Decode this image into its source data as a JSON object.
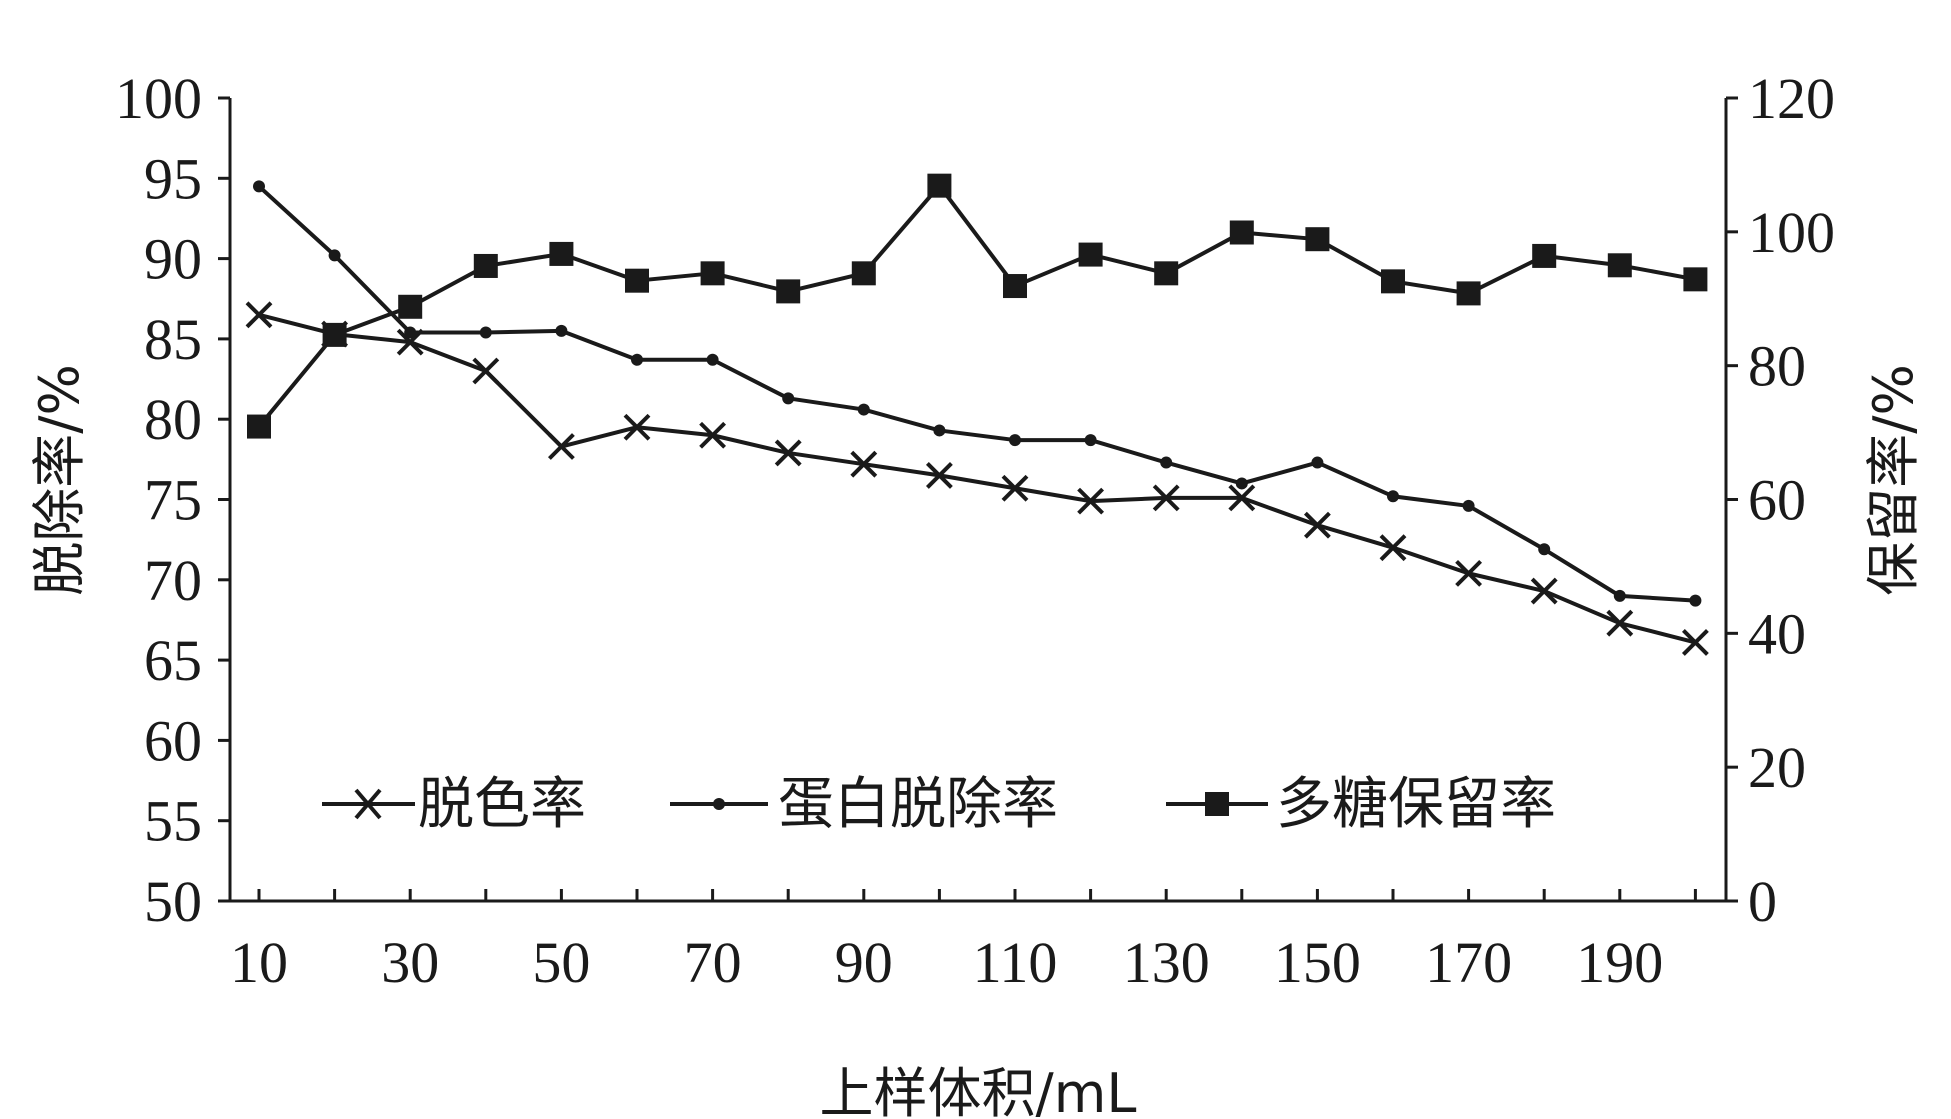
{
  "chart_data": {
    "type": "line",
    "x_tick_labels": [
      "10",
      "30",
      "50",
      "70",
      "90",
      "110",
      "130",
      "150",
      "170",
      "190"
    ],
    "x": [
      10,
      20,
      30,
      40,
      50,
      60,
      70,
      80,
      90,
      100,
      110,
      120,
      130,
      140,
      150,
      160,
      170,
      180,
      190,
      200
    ],
    "xlabel": "上样体积/mL",
    "ylabel_left": "脱除率/%",
    "ylabel_right": "保留率/%",
    "ylim_left": [
      50,
      100
    ],
    "ylim_right": [
      0,
      120
    ],
    "yticks_left": [
      "50",
      "55",
      "60",
      "65",
      "70",
      "75",
      "80",
      "85",
      "90",
      "95",
      "100"
    ],
    "yticks_right": [
      "0",
      "20",
      "40",
      "60",
      "80",
      "100",
      "120"
    ],
    "legend_position": "lower-center",
    "series": [
      {
        "name": "脱色率",
        "axis": "left",
        "marker": "x",
        "values": [
          86.5,
          85.3,
          84.8,
          83.0,
          78.3,
          79.5,
          79.0,
          77.9,
          77.2,
          76.5,
          75.7,
          74.9,
          75.1,
          75.1,
          73.4,
          72.0,
          70.4,
          69.3,
          67.3,
          66.1
        ]
      },
      {
        "name": "蛋白脱除率",
        "axis": "left",
        "marker": "dot",
        "values": [
          94.5,
          90.2,
          85.4,
          85.4,
          85.5,
          83.7,
          83.7,
          81.3,
          80.6,
          79.3,
          78.7,
          78.7,
          77.3,
          76.0,
          77.3,
          75.2,
          74.6,
          71.9,
          69.0,
          68.7
        ]
      },
      {
        "name": "多糖保留率",
        "axis": "right",
        "marker": "square",
        "values": [
          70.9,
          84.6,
          88.8,
          94.9,
          96.7,
          92.7,
          93.8,
          91.1,
          93.8,
          106.9,
          91.9,
          96.6,
          93.8,
          99.9,
          98.9,
          92.6,
          90.8,
          96.4,
          95.0,
          92.9
        ]
      }
    ]
  }
}
